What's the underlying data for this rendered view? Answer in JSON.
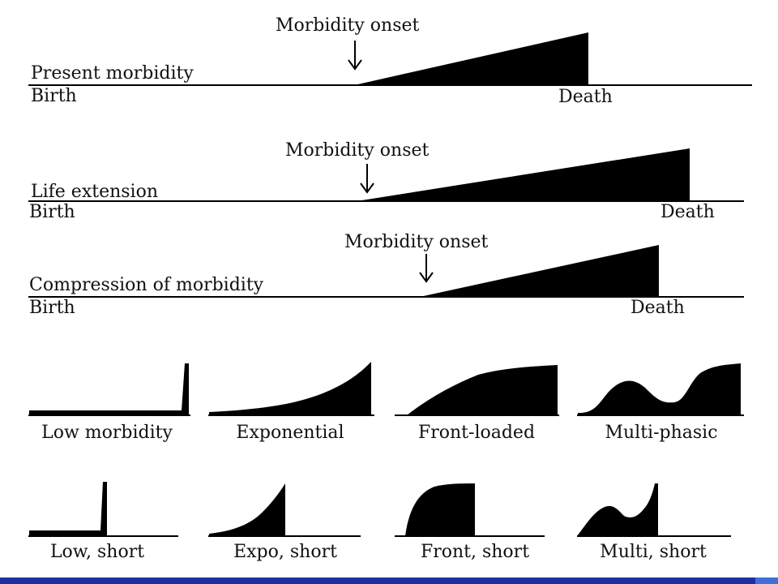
{
  "scenarios": [
    {
      "name": "Present morbidity",
      "onset_label": "Morbidity onset",
      "birth_label": "Birth",
      "death_label": "Death"
    },
    {
      "name": "Life extension",
      "onset_label": "Morbidity onset",
      "birth_label": "Birth",
      "death_label": "Death"
    },
    {
      "name": "Compression of morbidity",
      "onset_label": "Morbidity onset",
      "birth_label": "Birth",
      "death_label": "Death"
    }
  ],
  "profiles_long": [
    "Low morbidity",
    "Exponential",
    "Front-loaded",
    "Multi-phasic"
  ],
  "profiles_short": [
    "Low, short",
    "Expo, short",
    "Front, short",
    "Multi, short"
  ],
  "colors": {
    "ink": "#000000",
    "footer": "#1e2f9c",
    "footer_accent": "#3f6fd8"
  }
}
